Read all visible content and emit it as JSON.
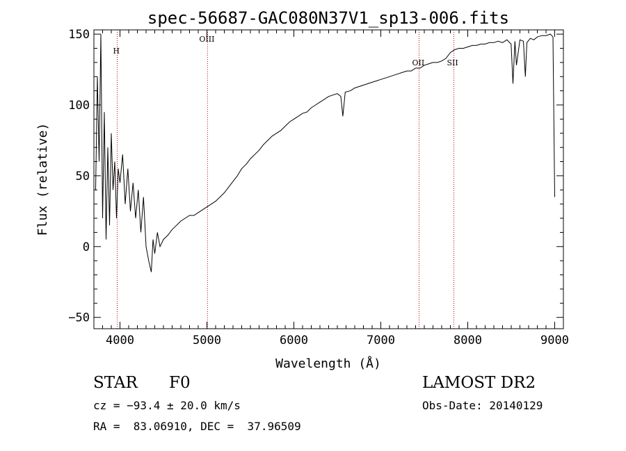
{
  "chart_data": {
    "type": "line",
    "title": "spec-56687-GAC080N37V1_sp13-006.fits",
    "xlabel": "Wavelength (Å)",
    "ylabel": "Flux (relative)",
    "xlim": [
      3700,
      9100
    ],
    "ylim": [
      -58,
      153
    ],
    "xticks": [
      4000,
      5000,
      6000,
      7000,
      8000,
      9000
    ],
    "yticks": [
      -50,
      0,
      50,
      100,
      150
    ],
    "tick_labels_x": [
      "4000",
      "5000",
      "6000",
      "7000",
      "8000",
      "9000"
    ],
    "tick_labels_y": [
      "−50",
      "0",
      "50",
      "100",
      "150"
    ],
    "grid": false,
    "line_color": "#000000",
    "marker_color": "#b00000",
    "spectral_lines": [
      {
        "label": "H",
        "x": 3968
      },
      {
        "label": "OIII",
        "x": 5007
      },
      {
        "label": "OII",
        "x": 7440
      },
      {
        "label": "SII",
        "x": 7840
      }
    ],
    "series": [
      {
        "x": [
          3720,
          3740,
          3760,
          3780,
          3800,
          3820,
          3840,
          3860,
          3880,
          3900,
          3920,
          3940,
          3960,
          3980,
          4000,
          4030,
          4060,
          4090,
          4120,
          4150,
          4180,
          4210,
          4240,
          4270,
          4300,
          4330,
          4360,
          4380,
          4400,
          4430,
          4460,
          4500,
          4550,
          4600,
          4650,
          4700,
          4750,
          4800,
          4850,
          4900,
          4950,
          5000,
          5050,
          5100,
          5150,
          5200,
          5250,
          5300,
          5350,
          5400,
          5450,
          5500,
          5550,
          5600,
          5650,
          5700,
          5750,
          5800,
          5850,
          5900,
          5950,
          6000,
          6050,
          6100,
          6150,
          6200,
          6250,
          6300,
          6350,
          6400,
          6450,
          6500,
          6540,
          6563,
          6590,
          6650,
          6700,
          6750,
          6800,
          6850,
          6900,
          6950,
          7000,
          7050,
          7100,
          7150,
          7200,
          7250,
          7300,
          7350,
          7400,
          7450,
          7500,
          7550,
          7600,
          7650,
          7700,
          7750,
          7800,
          7850,
          7900,
          7950,
          8000,
          8050,
          8100,
          8150,
          8200,
          8250,
          8300,
          8350,
          8400,
          8450,
          8498,
          8520,
          8542,
          8560,
          8600,
          8640,
          8662,
          8680,
          8720,
          8760,
          8800,
          8850,
          8900,
          8950,
          8980,
          9000
        ],
        "values": [
          40,
          120,
          60,
          150,
          20,
          95,
          5,
          70,
          15,
          80,
          40,
          60,
          20,
          55,
          45,
          65,
          30,
          55,
          25,
          45,
          20,
          40,
          10,
          35,
          0,
          -10,
          -18,
          5,
          -5,
          10,
          0,
          5,
          8,
          12,
          15,
          18,
          20,
          22,
          22,
          24,
          26,
          28,
          30,
          32,
          35,
          38,
          42,
          46,
          50,
          55,
          58,
          62,
          65,
          68,
          72,
          75,
          78,
          80,
          82,
          85,
          88,
          90,
          92,
          94,
          95,
          98,
          100,
          102,
          104,
          106,
          107,
          108,
          106,
          92,
          109,
          110,
          112,
          113,
          114,
          115,
          116,
          117,
          118,
          119,
          120,
          121,
          122,
          123,
          124,
          124,
          126,
          126,
          128,
          129,
          130,
          130,
          131,
          133,
          137,
          139,
          140,
          140,
          141,
          142,
          142,
          143,
          143,
          144,
          144,
          145,
          144,
          146,
          143,
          115,
          145,
          128,
          146,
          145,
          120,
          144,
          147,
          146,
          148,
          149,
          149,
          150,
          148,
          35
        ]
      }
    ]
  },
  "info": {
    "object_class": "STAR",
    "subclass": "F0",
    "survey": "LAMOST DR2",
    "redshift": "cz = −93.4 ± 20.0 km/s",
    "obs_date": "Obs-Date: 20140129",
    "coords": "RA =  83.06910, DEC =  37.96509"
  }
}
